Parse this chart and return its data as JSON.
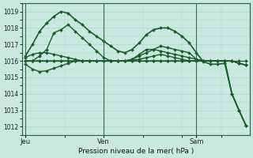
{
  "background_color": "#c8e8e0",
  "grid_color": "#b0d4cc",
  "line_color": "#1a5c2a",
  "ylim": [
    1011.5,
    1019.5
  ],
  "yticks": [
    1012,
    1013,
    1014,
    1015,
    1016,
    1017,
    1018,
    1019
  ],
  "xlabel": "Pression niveau de la mer( hPa )",
  "day_labels": [
    "Jeu",
    "Ven",
    "Sam"
  ],
  "series": [
    {
      "data": [
        1016.3,
        1017.0,
        1017.8,
        1018.3,
        1018.7,
        1019.0,
        1018.9,
        1018.5,
        1018.2,
        1017.8,
        1017.5,
        1017.2,
        1016.9,
        1016.6,
        1016.5,
        1016.7,
        1017.1,
        1017.6,
        1017.9,
        1018.0,
        1018.0,
        1017.8,
        1017.5,
        1017.1,
        1016.5,
        1015.95,
        1015.8,
        1015.8,
        1015.85,
        1014.0,
        1013.0,
        1012.05
      ],
      "lw": 1.2
    },
    {
      "data": [
        1016.0,
        1016.0,
        1016.3,
        1016.7,
        1017.7,
        1017.9,
        1018.2,
        1017.8,
        1017.4,
        1017.0,
        1016.6,
        1016.2,
        1016.0,
        1016.0,
        1016.0,
        1016.1,
        1016.4,
        1016.7,
        1016.7,
        1016.6,
        1016.5,
        1016.4,
        1016.3,
        1016.2,
        1016.1,
        1016.0,
        1016.0,
        1016.0,
        1016.0,
        1016.0,
        1015.85,
        1015.75
      ],
      "lw": 1.0
    },
    {
      "data": [
        1016.0,
        1016.0,
        1016.0,
        1016.0,
        1016.0,
        1016.0,
        1016.0,
        1016.0,
        1016.0,
        1016.0,
        1016.0,
        1016.0,
        1016.0,
        1016.0,
        1016.0,
        1016.0,
        1016.0,
        1016.0,
        1016.0,
        1016.0,
        1016.0,
        1016.0,
        1016.0,
        1016.0,
        1016.0,
        1016.0,
        1016.0,
        1016.0,
        1016.0,
        1016.0,
        1016.0,
        1016.0
      ],
      "lw": 0.9
    },
    {
      "data": [
        1016.2,
        1016.4,
        1016.5,
        1016.5,
        1016.4,
        1016.3,
        1016.2,
        1016.1,
        1016.0,
        1016.0,
        1016.0,
        1016.0,
        1016.0,
        1016.0,
        1016.0,
        1016.1,
        1016.3,
        1016.5,
        1016.7,
        1016.9,
        1016.8,
        1016.7,
        1016.6,
        1016.5,
        1016.1,
        1016.0,
        1016.0,
        1016.0,
        1016.0,
        1016.0,
        1015.85,
        1015.75
      ],
      "lw": 1.0
    },
    {
      "data": [
        1015.8,
        1015.5,
        1015.35,
        1015.4,
        1015.55,
        1015.7,
        1015.85,
        1016.0,
        1016.0,
        1016.0,
        1016.0,
        1016.0,
        1016.0,
        1016.0,
        1016.0,
        1016.05,
        1016.1,
        1016.2,
        1016.3,
        1016.4,
        1016.3,
        1016.2,
        1016.1,
        1016.0,
        1016.0,
        1016.0,
        1016.0,
        1016.0,
        1016.0,
        1016.0,
        1015.85,
        1015.75
      ],
      "lw": 1.0
    },
    {
      "data": [
        1016.0,
        1016.0,
        1016.0,
        1016.0,
        1016.0,
        1016.0,
        1016.0,
        1016.0,
        1016.0,
        1016.0,
        1016.0,
        1016.0,
        1016.0,
        1016.0,
        1016.0,
        1016.0,
        1016.0,
        1016.0,
        1016.0,
        1016.0,
        1016.0,
        1016.0,
        1016.0,
        1016.0,
        1016.0,
        1016.0,
        1016.0,
        1016.0,
        1016.0,
        1014.0,
        1013.0,
        1012.05
      ],
      "lw": 1.2
    }
  ],
  "marker": "D",
  "marker_size": 2.0,
  "figsize": [
    3.2,
    2.0
  ],
  "dpi": 100
}
